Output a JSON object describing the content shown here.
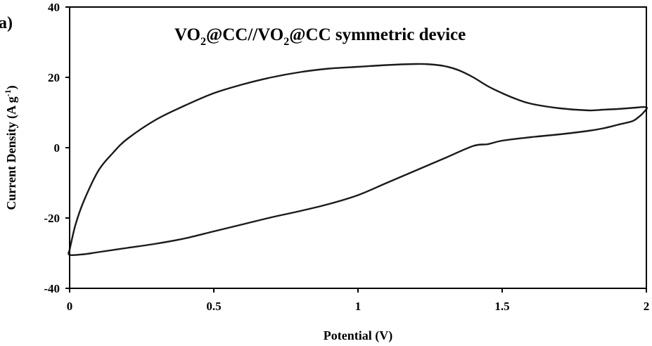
{
  "chart_data": {
    "type": "line",
    "panel_label": "(a)",
    "title": {
      "prefix": "VO",
      "sub1": "2",
      "middle": "@CC//VO",
      "sub2": "2",
      "suffix": "@CC  symmetric device"
    },
    "xlabel": "Potential (V)",
    "ylabel": {
      "text": "Current Density (A g",
      "sup": "-1",
      "close": ")"
    },
    "xlim": [
      0,
      2
    ],
    "ylim": [
      -40,
      40
    ],
    "xticks": [
      0,
      0.5,
      1,
      1.5,
      2
    ],
    "xtick_labels": [
      "0",
      "0.5",
      "1",
      "1.5",
      "2"
    ],
    "yticks": [
      -40,
      -20,
      0,
      20,
      40
    ],
    "ytick_labels": [
      "-40",
      "-20",
      "0",
      "20",
      "40"
    ],
    "grid": false,
    "series": [
      {
        "stroke": "#1a1a1a",
        "x": [
          0,
          0.02,
          0.05,
          0.1,
          0.15,
          0.2,
          0.3,
          0.4,
          0.5,
          0.6,
          0.7,
          0.8,
          0.9,
          1.0,
          1.1,
          1.2,
          1.25,
          1.3,
          1.35,
          1.4,
          1.45,
          1.5,
          1.55,
          1.6,
          1.7,
          1.8,
          1.85,
          1.9,
          1.95,
          2.0,
          1.99,
          1.97,
          1.95,
          1.9,
          1.85,
          1.8,
          1.7,
          1.6,
          1.5,
          1.45,
          1.4,
          1.3,
          1.2,
          1.1,
          1.0,
          0.9,
          0.8,
          0.7,
          0.6,
          0.5,
          0.4,
          0.3,
          0.2,
          0.1,
          0.05,
          0.0,
          0.0
        ],
        "y": [
          -29,
          -22,
          -15,
          -6.5,
          -1.5,
          2.5,
          8,
          12,
          15.5,
          18,
          20,
          21.5,
          22.5,
          23,
          23.5,
          23.8,
          23.7,
          23.2,
          22,
          20,
          17.5,
          15.5,
          13.8,
          12.5,
          11.2,
          10.6,
          10.8,
          11,
          11.3,
          11.5,
          10,
          8.5,
          7.5,
          6.5,
          5.5,
          4.8,
          3.8,
          3,
          2,
          1,
          0.5,
          -3,
          -6.5,
          -10,
          -13.5,
          -16,
          -18,
          -19.8,
          -21.8,
          -23.8,
          -25.8,
          -27.3,
          -28.5,
          -29.7,
          -30.3,
          -30.5,
          -29
        ]
      }
    ]
  }
}
